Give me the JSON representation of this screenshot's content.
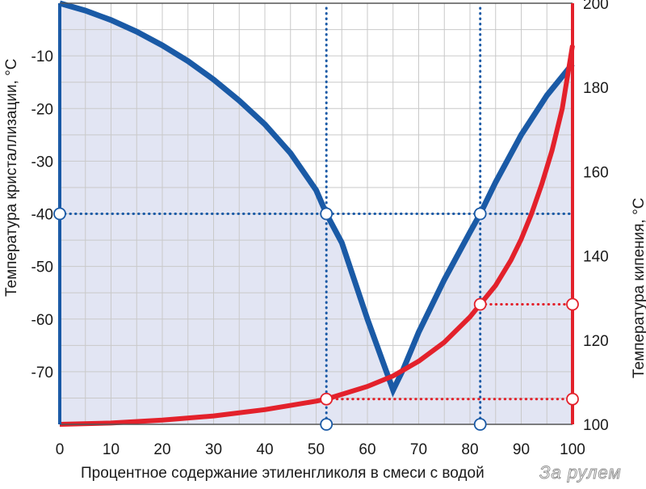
{
  "chart_data": {
    "type": "line",
    "xlabel": "Процентное содержание этиленгликоля в смеси с водой",
    "ylabel_left": "Температура кристаллизации, °С",
    "ylabel_right": "Температура кипения, °С",
    "x_ticks": [
      "0",
      "10",
      "20",
      "30",
      "40",
      "50",
      "60",
      "70",
      "80",
      "90",
      "100"
    ],
    "y_left_ticks": [
      "-10",
      "-20",
      "-30",
      "-40",
      "-50",
      "-60",
      "-70"
    ],
    "y_right_ticks": [
      "100",
      "120",
      "140",
      "160",
      "180",
      "200"
    ],
    "xlim": [
      0,
      100
    ],
    "ylim_left": [
      -80,
      0
    ],
    "ylim_right": [
      100,
      200
    ],
    "grid": true,
    "series": [
      {
        "axis": "left",
        "color": "#1a5aa6",
        "x": [
          0,
          5,
          10,
          15,
          20,
          25,
          30,
          35,
          40,
          45,
          50,
          52,
          55,
          60,
          65,
          67,
          70,
          75,
          80,
          82,
          85,
          90,
          95,
          100
        ],
        "y": [
          0,
          -1.4,
          -3.2,
          -5.4,
          -8.0,
          -11.0,
          -14.5,
          -18.5,
          -23.0,
          -28.5,
          -35.5,
          -40.0,
          -45.5,
          -60.0,
          -73.5,
          -69.5,
          -62.5,
          -52.5,
          -43.5,
          -40.0,
          -34.0,
          -25.0,
          -17.5,
          -11.5
        ]
      },
      {
        "axis": "right",
        "color": "#e3212b",
        "x": [
          0,
          10,
          20,
          30,
          40,
          50,
          52,
          60,
          65,
          70,
          75,
          80,
          82,
          85,
          88,
          90,
          92,
          94,
          96,
          98,
          100
        ],
        "y": [
          100,
          100.3,
          101,
          102,
          103.5,
          105.5,
          106,
          109,
          111.5,
          115,
          119.5,
          125.5,
          128.5,
          133,
          139,
          144,
          150,
          157,
          165,
          175,
          190
        ]
      }
    ],
    "annotations": [
      {
        "type": "vline",
        "x": 52
      },
      {
        "type": "vline",
        "x": 82
      },
      {
        "type": "hline",
        "axis": "left",
        "y": -40
      },
      {
        "type": "hline",
        "axis": "right",
        "y": 106
      },
      {
        "type": "hline",
        "axis": "right",
        "y": 128.5
      }
    ]
  },
  "watermark": "За рулем"
}
